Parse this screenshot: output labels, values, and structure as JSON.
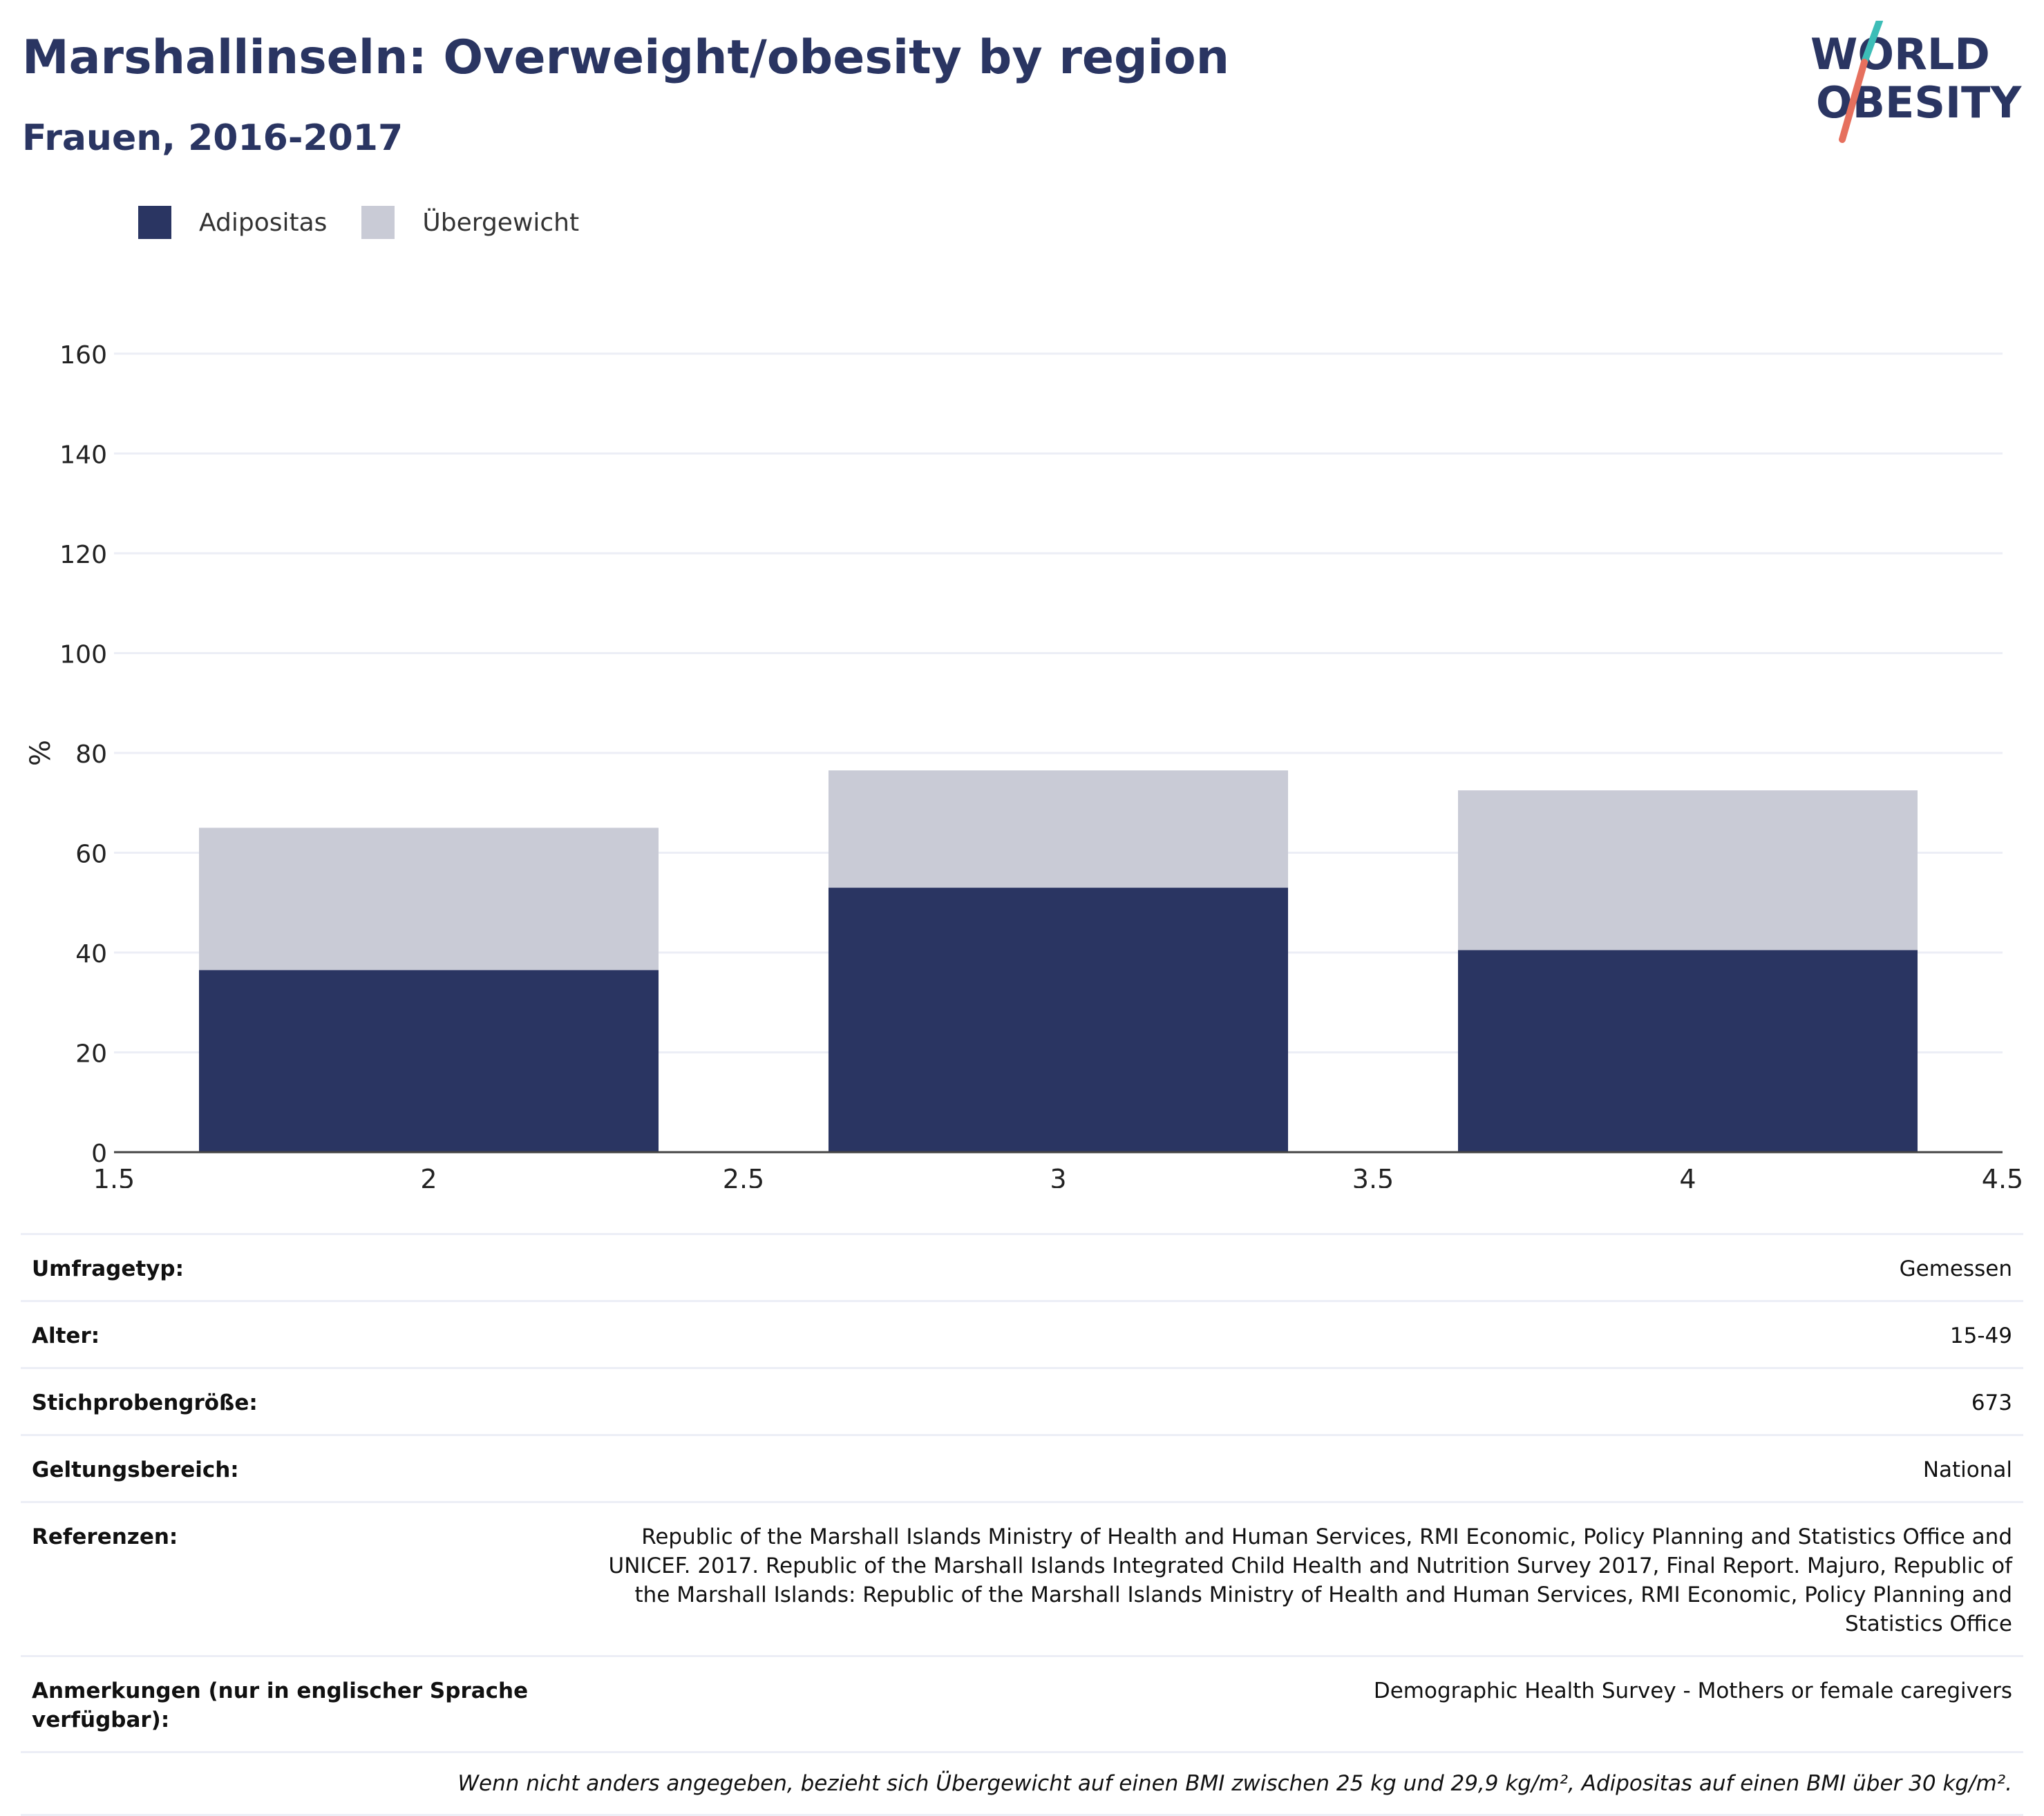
{
  "header": {
    "title": "Marshallinseln: Overweight/obesity by region",
    "subtitle": "Frauen, 2016-2017"
  },
  "logo": {
    "line1": "WORLD",
    "line2": "OBESITY"
  },
  "colors": {
    "obesity": "#2a3562",
    "overweight": "#c9cbd6",
    "text": "#2a3562",
    "grid": "#eceef6",
    "logo_teal": "#3dbdb7",
    "logo_coral": "#e6705e"
  },
  "chart_data": {
    "type": "bar",
    "stacked": true,
    "x": [
      2,
      3,
      4
    ],
    "series": [
      {
        "name": "Adipositas",
        "values": [
          36.5,
          53.0,
          40.5
        ]
      },
      {
        "name": "Übergewicht",
        "values": [
          28.5,
          23.5,
          32.0
        ]
      }
    ],
    "ylabel": "%",
    "ylim": [
      0,
      160
    ],
    "yticks": [
      "0",
      "20",
      "40",
      "60",
      "80",
      "100",
      "120",
      "140",
      "160"
    ],
    "xlim": [
      1.5,
      4.5
    ],
    "xticks": [
      "1.5",
      "2",
      "2.5",
      "3",
      "3.5",
      "4",
      "4.5"
    ],
    "grid": true,
    "legend_position": "top-left"
  },
  "meta": [
    {
      "key": "Umfragetyp:",
      "value": "Gemessen"
    },
    {
      "key": "Alter:",
      "value": "15-49"
    },
    {
      "key": "Stichprobengröße:",
      "value": "673"
    },
    {
      "key": "Geltungsbereich:",
      "value": "National"
    },
    {
      "key": "Referenzen:",
      "value": "Republic of the Marshall Islands Ministry of Health and Human Services, RMI Economic, Policy Planning and Statistics Office and UNICEF. 2017. Republic of the Marshall Islands Integrated Child Health and Nutrition Survey 2017, Final Report. Majuro, Republic of the Marshall Islands: Republic of the Marshall Islands Ministry of Health and Human Services, RMI Economic, Policy Planning and Statistics Office"
    },
    {
      "key": "Anmerkungen (nur in englischer Sprache verfügbar):",
      "value": "Demographic Health Survey - Mothers or female caregivers"
    }
  ],
  "footnote": "Wenn nicht anders angegeben, bezieht sich Übergewicht auf einen BMI zwischen 25 kg und 29,9 kg/m², Adipositas auf einen BMI über 30 kg/m²."
}
